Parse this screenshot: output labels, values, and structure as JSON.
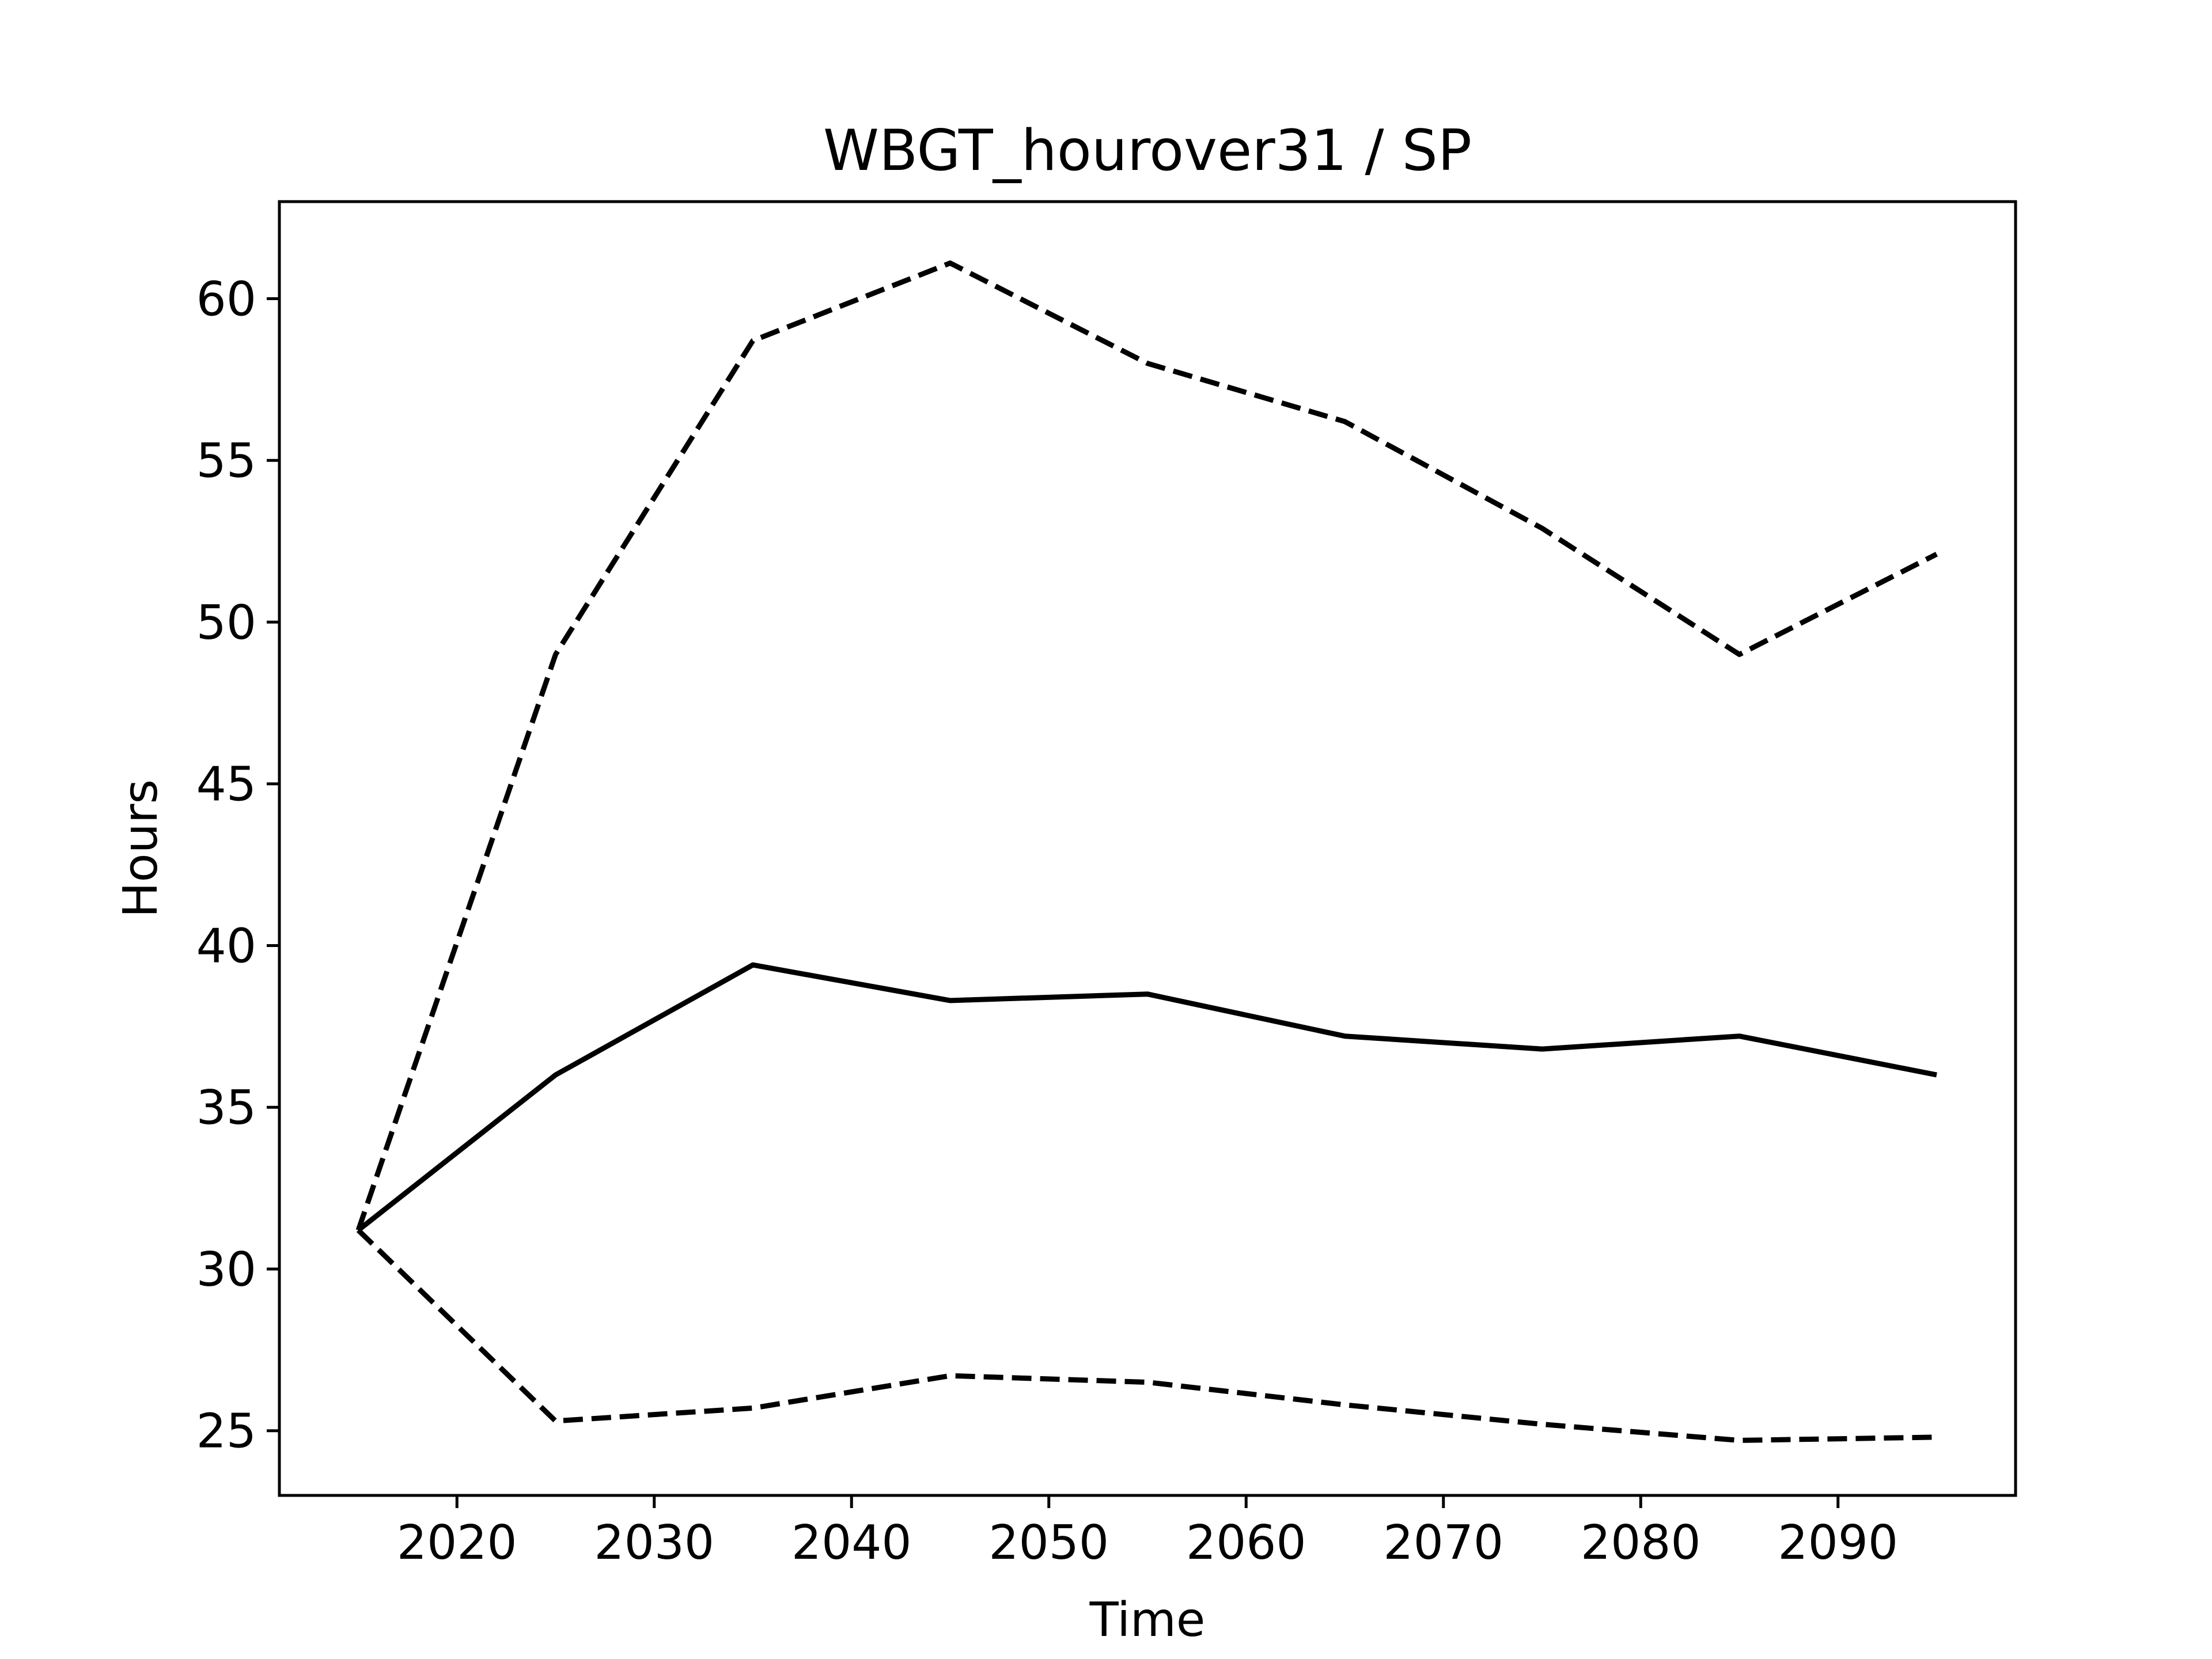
{
  "chart_data": {
    "type": "line",
    "title": "WBGT_hourover31 / SP",
    "xlabel": "Time",
    "ylabel": "Hours",
    "xlim": [
      2011,
      2099
    ],
    "ylim": [
      23,
      63
    ],
    "xticks": [
      2020,
      2030,
      2040,
      2050,
      2060,
      2070,
      2080,
      2090
    ],
    "yticks": [
      25,
      30,
      35,
      40,
      45,
      50,
      55,
      60
    ],
    "x": [
      2015,
      2025,
      2035,
      2045,
      2055,
      2065,
      2075,
      2085,
      2095
    ],
    "series": [
      {
        "style": "solid",
        "values": [
          31.2,
          36.0,
          39.4,
          38.3,
          38.5,
          37.2,
          36.8,
          37.2,
          36.0
        ]
      },
      {
        "style": "dashed",
        "values": [
          31.2,
          49.0,
          58.7,
          61.1,
          58.0,
          56.2,
          52.9,
          49.0,
          52.1
        ]
      },
      {
        "style": "dashed",
        "values": [
          31.2,
          25.3,
          25.7,
          26.7,
          26.5,
          25.8,
          25.2,
          24.7,
          24.8
        ]
      }
    ],
    "grid": false,
    "legend": "none",
    "line_color": "#000000"
  }
}
